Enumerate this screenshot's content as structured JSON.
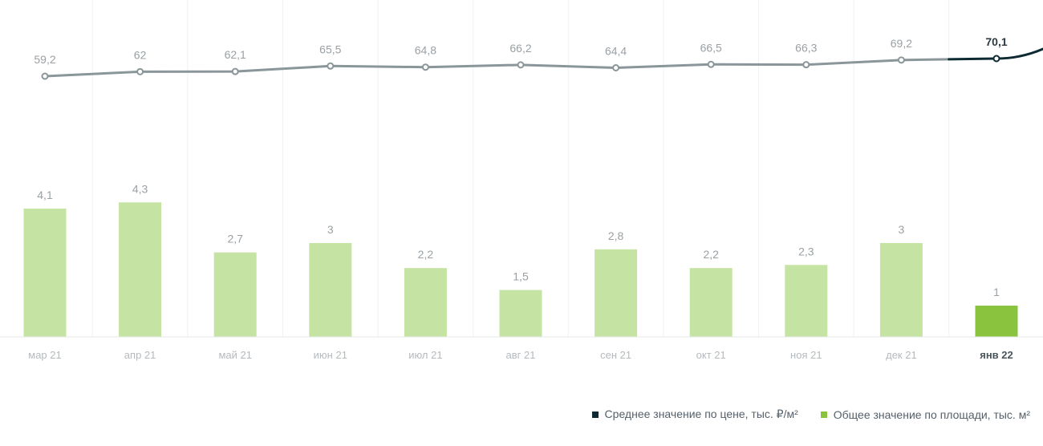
{
  "chart_data": {
    "type": "bar",
    "categories": [
      "мар 21",
      "апр 21",
      "май 21",
      "июн 21",
      "июл 21",
      "авг 21",
      "сен 21",
      "окт 21",
      "ноя 21",
      "дек 21",
      "янв 22"
    ],
    "active_category": "янв 22",
    "series": [
      {
        "name": "Среднее значение по цене, тыс. ₽/м²",
        "type": "line",
        "values": [
          59.2,
          62,
          62.1,
          65.5,
          64.8,
          66.2,
          64.4,
          66.5,
          66.3,
          69.2,
          70.1
        ],
        "labels": [
          "59,2",
          "62",
          "62,1",
          "65,5",
          "64,8",
          "66,2",
          "64,4",
          "66,5",
          "66,3",
          "69,2",
          "70,1"
        ],
        "color": "#8a9699",
        "active_color": "#0d2a33"
      },
      {
        "name": "Общее значение по площади, тыс. м²",
        "type": "bar",
        "values": [
          4.1,
          4.3,
          2.7,
          3,
          2.2,
          1.5,
          2.8,
          2.2,
          2.3,
          3,
          1
        ],
        "labels": [
          "4,1",
          "4,3",
          "2,7",
          "3",
          "2,2",
          "1,5",
          "2,8",
          "2,2",
          "2,3",
          "3",
          "1"
        ],
        "color": "#c5e3a2",
        "active_color": "#8ac43f"
      }
    ],
    "legend_position": "bottom-right",
    "grid": "vertical"
  },
  "legend": {
    "price_label": "Среднее значение по цене, тыс. ₽/м²",
    "price_color": "#0d2a33",
    "area_label": "Общее значение по площади, тыс. м²",
    "area_color": "#8ac43f"
  }
}
